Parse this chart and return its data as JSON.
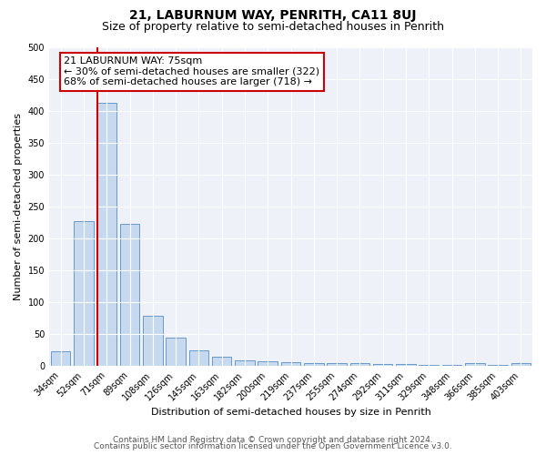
{
  "title": "21, LABURNUM WAY, PENRITH, CA11 8UJ",
  "subtitle": "Size of property relative to semi-detached houses in Penrith",
  "xlabel": "Distribution of semi-detached houses by size in Penrith",
  "ylabel": "Number of semi-detached properties",
  "categories": [
    "34sqm",
    "52sqm",
    "71sqm",
    "89sqm",
    "108sqm",
    "126sqm",
    "145sqm",
    "163sqm",
    "182sqm",
    "200sqm",
    "219sqm",
    "237sqm",
    "255sqm",
    "274sqm",
    "292sqm",
    "311sqm",
    "329sqm",
    "348sqm",
    "366sqm",
    "385sqm",
    "403sqm"
  ],
  "values": [
    23,
    227,
    413,
    222,
    78,
    44,
    24,
    15,
    8,
    7,
    6,
    5,
    4,
    4,
    3,
    3,
    2,
    2,
    5,
    2,
    4
  ],
  "bar_color": "#c6d9ef",
  "bar_edge_color": "#6699cc",
  "property_line_index": 2,
  "property_line_color": "#cc0000",
  "annotation_title": "21 LABURNUM WAY: 75sqm",
  "annotation_line1": "← 30% of semi-detached houses are smaller (322)",
  "annotation_line2": "68% of semi-detached houses are larger (718) →",
  "annotation_box_color": "#cc0000",
  "ylim": [
    0,
    500
  ],
  "yticks": [
    0,
    50,
    100,
    150,
    200,
    250,
    300,
    350,
    400,
    450,
    500
  ],
  "footer1": "Contains HM Land Registry data © Crown copyright and database right 2024.",
  "footer2": "Contains public sector information licensed under the Open Government Licence v3.0.",
  "bg_color": "#eef2f8",
  "fig_bg_color": "#ffffff",
  "title_fontsize": 10,
  "subtitle_fontsize": 9,
  "annotation_fontsize": 8,
  "tick_fontsize": 7,
  "axis_label_fontsize": 8,
  "footer_fontsize": 6.5
}
